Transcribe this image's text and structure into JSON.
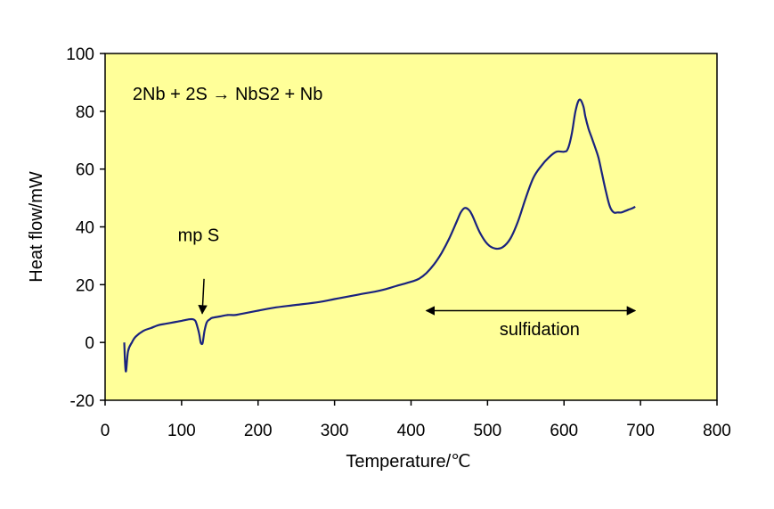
{
  "chart_data": {
    "type": "line",
    "title": "",
    "xlabel": "Temperature/℃",
    "ylabel": "Heat flow/mW",
    "xlim": [
      0,
      800
    ],
    "ylim": [
      -20,
      100
    ],
    "x_ticks": [
      "0",
      "100",
      "200",
      "300",
      "400",
      "500",
      "600",
      "700",
      "800"
    ],
    "y_ticks": [
      "-20",
      "0",
      "20",
      "40",
      "60",
      "80",
      "100"
    ],
    "grid": false,
    "legend": "none",
    "colors": {
      "plot_background": "#ffff99",
      "line": "#1a237e",
      "axis": "#000000"
    },
    "series": [
      {
        "x": [
          25,
          27,
          30,
          35,
          40,
          50,
          60,
          70,
          80,
          90,
          100,
          110,
          115,
          118,
          120,
          123,
          125,
          127,
          128,
          130,
          133,
          137,
          140,
          150,
          160,
          170,
          180,
          200,
          220,
          250,
          280,
          300,
          330,
          360,
          380,
          400,
          410,
          420,
          430,
          440,
          450,
          460,
          465,
          470,
          475,
          480,
          490,
          500,
          510,
          520,
          530,
          540,
          550,
          560,
          570,
          580,
          590,
          600,
          605,
          610,
          615,
          620,
          625,
          628,
          632,
          636,
          640,
          645,
          650,
          655,
          660,
          665,
          670,
          675,
          680,
          685,
          690,
          693
        ],
        "y": [
          0,
          -10,
          -3,
          0,
          2,
          4,
          5,
          6,
          6.5,
          7,
          7.5,
          8,
          8,
          7.5,
          6,
          3,
          0,
          -0.5,
          0.5,
          4,
          7,
          8,
          8.5,
          9,
          9.5,
          9.5,
          10,
          11,
          12,
          13,
          14,
          15,
          16.5,
          18,
          19.5,
          21,
          22,
          24,
          27,
          31,
          36,
          42,
          45,
          46.5,
          46,
          44,
          38,
          34,
          32.5,
          33,
          36,
          42,
          50,
          57,
          61,
          64,
          66,
          66,
          67,
          72,
          80,
          84,
          82,
          78,
          74,
          71,
          68,
          64,
          58,
          52,
          47,
          45,
          45,
          45,
          45.5,
          46,
          46.5,
          47
        ]
      }
    ],
    "annotations": {
      "reaction": "2Nb + 2S → NbS2 + Nb",
      "melting": "mp S",
      "range": "sulfidation"
    },
    "markers": {
      "melting_arrow": {
        "x": 127,
        "y_from": 22,
        "y_to": 10
      },
      "range_arrow": {
        "x_from": 420,
        "x_to": 693,
        "y": 11
      }
    }
  }
}
